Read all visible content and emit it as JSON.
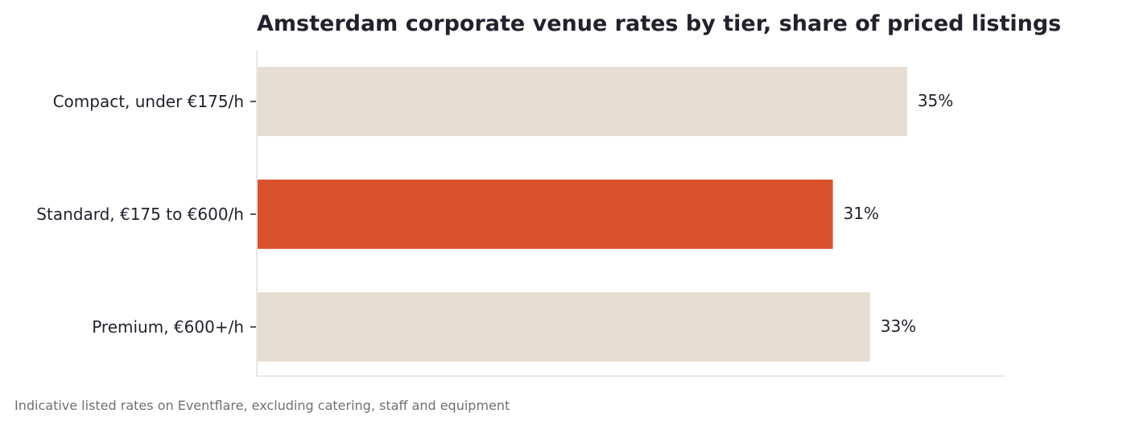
{
  "chart_data": {
    "type": "bar",
    "orientation": "horizontal",
    "title": "Amsterdam corporate venue rates by tier, share of priced listings",
    "categories": [
      "Compact, under €175/h",
      "Standard, €175 to €600/h",
      "Premium, €600+/h"
    ],
    "values": [
      35,
      31,
      33
    ],
    "value_labels": [
      "35%",
      "31%",
      "33%"
    ],
    "highlight_index": 1,
    "colors": {
      "default": "#e6ddd3",
      "highlight": "#d9522b",
      "axis": "#e0e0e0",
      "text": "#22222e"
    },
    "xlim": [
      0,
      40.3
    ],
    "xlabel": "",
    "ylabel": "",
    "grid": false
  },
  "footnote": "Indicative listed rates on Eventflare, excluding catering, staff and equipment"
}
